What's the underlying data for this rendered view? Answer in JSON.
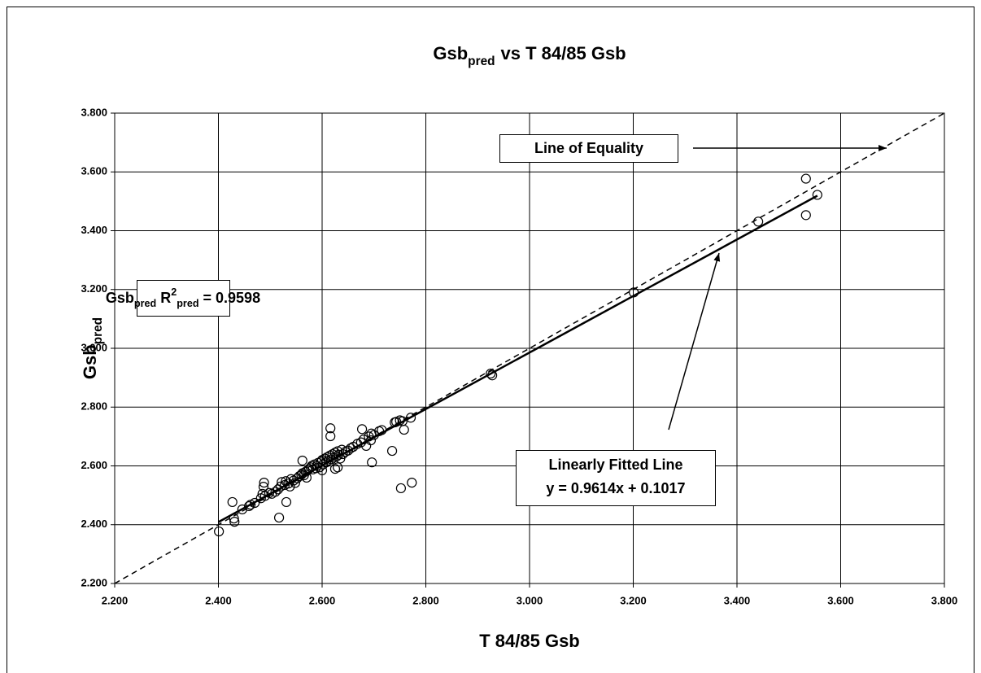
{
  "chart_data": {
    "type": "scatter",
    "title": [
      "Gsb",
      "pred",
      "vs T 84/85 Gsb"
    ],
    "xlabel": "T 84/85 Gsb",
    "ylabel": [
      "Gsb",
      "pred"
    ],
    "xlim": [
      2.2,
      3.8
    ],
    "ylim": [
      2.2,
      3.8
    ],
    "xticks": [
      {
        "value": 2.2,
        "label": "2.200"
      },
      {
        "value": 2.4,
        "label": "2.400"
      },
      {
        "value": 2.6,
        "label": "2.600"
      },
      {
        "value": 2.8,
        "label": "2.800"
      },
      {
        "value": 3.0,
        "label": "3.000"
      },
      {
        "value": 3.2,
        "label": "3.200"
      },
      {
        "value": 3.4,
        "label": "3.400"
      },
      {
        "value": 3.6,
        "label": "3.600"
      },
      {
        "value": 3.8,
        "label": "3.800"
      }
    ],
    "yticks": [
      {
        "value": 2.2,
        "label": "2.200"
      },
      {
        "value": 2.4,
        "label": "2.400"
      },
      {
        "value": 2.6,
        "label": "2.600"
      },
      {
        "value": 2.8,
        "label": "2.800"
      },
      {
        "value": 3.0,
        "label": "3.000"
      },
      {
        "value": 3.2,
        "label": "3.200"
      },
      {
        "value": 3.4,
        "label": "3.400"
      },
      {
        "value": 3.6,
        "label": "3.600"
      },
      {
        "value": 3.8,
        "label": "3.800"
      }
    ],
    "grid": true,
    "color": "#000000",
    "x": [
      2.401,
      2.431,
      2.427,
      2.446,
      2.459,
      2.43,
      2.517,
      2.531,
      2.487,
      2.488,
      2.562,
      2.616,
      2.616,
      2.677,
      2.694,
      2.735,
      2.696,
      2.752,
      2.773,
      2.758,
      2.771,
      2.743,
      2.925,
      2.928,
      3.201,
      3.441,
      3.533,
      3.533,
      3.555,
      2.462,
      2.47,
      2.482,
      2.485,
      2.49,
      2.498,
      2.503,
      2.51,
      2.515,
      2.52,
      2.522,
      2.528,
      2.53,
      2.535,
      2.538,
      2.54,
      2.545,
      2.548,
      2.552,
      2.556,
      2.56,
      2.562,
      2.565,
      2.568,
      2.57,
      2.572,
      2.575,
      2.578,
      2.58,
      2.582,
      2.585,
      2.588,
      2.59,
      2.592,
      2.595,
      2.598,
      2.6,
      2.602,
      2.605,
      2.608,
      2.61,
      2.612,
      2.615,
      2.618,
      2.62,
      2.622,
      2.625,
      2.628,
      2.63,
      2.632,
      2.635,
      2.638,
      2.64,
      2.645,
      2.65,
      2.655,
      2.66,
      2.668,
      2.675,
      2.68,
      2.685,
      2.69,
      2.695,
      2.7,
      2.71,
      2.715,
      2.74,
      2.75,
      2.755,
      2.63,
      2.625,
      2.6
    ],
    "values": [
      2.377,
      2.41,
      2.477,
      2.452,
      2.463,
      2.421,
      2.424,
      2.477,
      2.529,
      2.543,
      2.618,
      2.701,
      2.728,
      2.725,
      2.687,
      2.651,
      2.612,
      2.524,
      2.543,
      2.723,
      2.764,
      2.75,
      2.914,
      2.908,
      3.19,
      3.431,
      3.577,
      3.453,
      3.522,
      2.468,
      2.474,
      2.49,
      2.505,
      2.498,
      2.508,
      2.505,
      2.512,
      2.52,
      2.53,
      2.545,
      2.535,
      2.548,
      2.54,
      2.53,
      2.555,
      2.55,
      2.542,
      2.558,
      2.565,
      2.57,
      2.575,
      2.568,
      2.58,
      2.56,
      2.585,
      2.59,
      2.595,
      2.6,
      2.588,
      2.605,
      2.592,
      2.6,
      2.61,
      2.595,
      2.615,
      2.62,
      2.605,
      2.625,
      2.612,
      2.63,
      2.618,
      2.635,
      2.622,
      2.64,
      2.628,
      2.645,
      2.632,
      2.65,
      2.638,
      2.625,
      2.655,
      2.64,
      2.648,
      2.652,
      2.66,
      2.665,
      2.675,
      2.68,
      2.69,
      2.668,
      2.7,
      2.71,
      2.705,
      2.718,
      2.722,
      2.748,
      2.755,
      2.752,
      2.595,
      2.59,
      2.585
    ],
    "lines": [
      {
        "x": [
          2.2,
          3.8
        ],
        "values": [
          2.2,
          3.8
        ],
        "style": "dashed"
      },
      {
        "x": [
          2.4,
          3.555
        ],
        "values": [
          2.409,
          3.519
        ],
        "style": "solid"
      }
    ],
    "annotations": {
      "r2": [
        "Gsb",
        "pred",
        "R",
        "2",
        "pred",
        "= 0.9598"
      ],
      "equality": "Line of Equality",
      "fit": [
        "Linearly Fitted Line",
        "y = 0.9614x + 0.1017"
      ]
    }
  }
}
